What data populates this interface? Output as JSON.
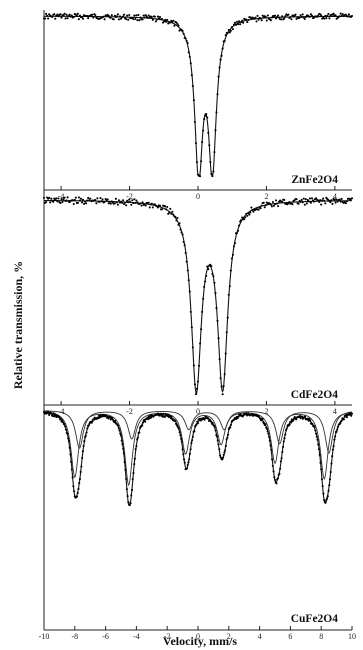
{
  "chart_data": {
    "type": "scatter",
    "ylabel": "Relative transmission, %",
    "xlabel": "Velocity, mm/s",
    "panels": [
      {
        "label": "ZnFe2O4",
        "xlim": [
          -4.5,
          4.5
        ],
        "xticks": [
          -4,
          -2,
          0,
          2,
          4
        ],
        "series": {
          "type": "doublet",
          "centers": [
            0.02,
            0.42
          ],
          "widths": [
            0.28,
            0.28
          ],
          "depths": [
            0.95,
            0.92
          ]
        }
      },
      {
        "label": "CdFe2O4",
        "xlim": [
          -4.5,
          4.5
        ],
        "xticks": [
          -4,
          -2,
          0,
          2,
          4
        ],
        "series": {
          "type": "doublet",
          "centers": [
            -0.05,
            0.72
          ],
          "widths": [
            0.36,
            0.36
          ],
          "depths": [
            0.93,
            0.92
          ]
        }
      },
      {
        "label": "CuFe2O4",
        "xlim": [
          -10,
          10
        ],
        "xticks": [
          -10,
          -8,
          -6,
          -4,
          -2,
          0,
          2,
          4,
          6,
          8,
          10
        ],
        "series": {
          "type": "sextets",
          "sextets": [
            {
              "centers": [
                -8.0,
                -4.5,
                -0.8,
                1.5,
                5.0,
                8.2
              ],
              "width": 0.6,
              "depths": [
                0.7,
                0.78,
                0.45,
                0.35,
                0.55,
                0.72
              ]
            },
            {
              "centers": [
                -7.7,
                -4.3,
                -0.6,
                1.7,
                5.3,
                8.5
              ],
              "width": 0.6,
              "depths": [
                0.4,
                0.3,
                0.2,
                0.2,
                0.35,
                0.45
              ]
            }
          ]
        }
      }
    ]
  }
}
